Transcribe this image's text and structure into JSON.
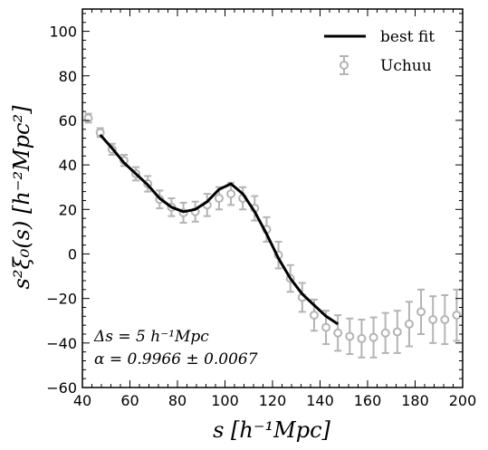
{
  "chart_data": {
    "type": "scatter",
    "title": "",
    "xlabel": "s [h⁻¹Mpc]",
    "ylabel": "s²ξ₀(s) [h⁻²Mpc²]",
    "xlim": [
      40,
      200
    ],
    "ylim": [
      -60,
      110
    ],
    "xticks": [
      "40",
      "60",
      "80",
      "100",
      "120",
      "140",
      "160",
      "180",
      "200"
    ],
    "yticks": [
      "−60",
      "−40",
      "−20",
      "0",
      "20",
      "40",
      "60",
      "80",
      "100"
    ],
    "legend_position": "top-right",
    "series": [
      {
        "name": "best fit",
        "kind": "line",
        "color": "#000000",
        "x": [
          47.5,
          52.5,
          57.5,
          62.5,
          67.5,
          72.5,
          77.5,
          82.5,
          87.5,
          92.5,
          97.5,
          102.5,
          107.5,
          112.5,
          117.5,
          122.5,
          127.5,
          132.5,
          137.5,
          142.5,
          147.5
        ],
        "y": [
          53.5,
          47.5,
          41,
          36,
          31,
          25,
          21,
          19,
          20,
          23.5,
          29,
          31.5,
          27,
          19,
          9,
          -2,
          -11,
          -18,
          -23,
          -28,
          -31.5
        ]
      },
      {
        "name": "Uchuu",
        "kind": "errorbar",
        "color": "#b4b4b4",
        "x": [
          42.5,
          47.5,
          52.5,
          57.5,
          62.5,
          67.5,
          72.5,
          77.5,
          82.5,
          87.5,
          92.5,
          97.5,
          102.5,
          107.5,
          112.5,
          117.5,
          122.5,
          127.5,
          132.5,
          137.5,
          142.5,
          147.5,
          152.5,
          157.5,
          162.5,
          167.5,
          172.5,
          177.5,
          182.5,
          187.5,
          192.5,
          197.5
        ],
        "y": [
          61,
          54.5,
          47,
          42,
          36,
          31.5,
          24.5,
          21,
          18.5,
          19,
          22,
          25,
          27,
          25,
          20.5,
          11,
          -0.5,
          -11,
          -19.5,
          -27.5,
          -33,
          -35.5,
          -37,
          -38,
          -37.5,
          -35.5,
          -35,
          -31.5,
          -26,
          -29.5,
          -29.5,
          -27.5
        ],
        "yerr": [
          2,
          2,
          2.5,
          2.5,
          3,
          3.5,
          4,
          4,
          4.5,
          4.5,
          5,
          5,
          5,
          5,
          5.5,
          5.5,
          6,
          6,
          6.5,
          7,
          7.5,
          8,
          8,
          8.5,
          9,
          9,
          9.5,
          10,
          10,
          10.5,
          11,
          11.5
        ]
      }
    ],
    "annotations": [
      "Δs = 5 h⁻¹Mpc",
      "α = 0.9966 ± 0.0067"
    ]
  }
}
